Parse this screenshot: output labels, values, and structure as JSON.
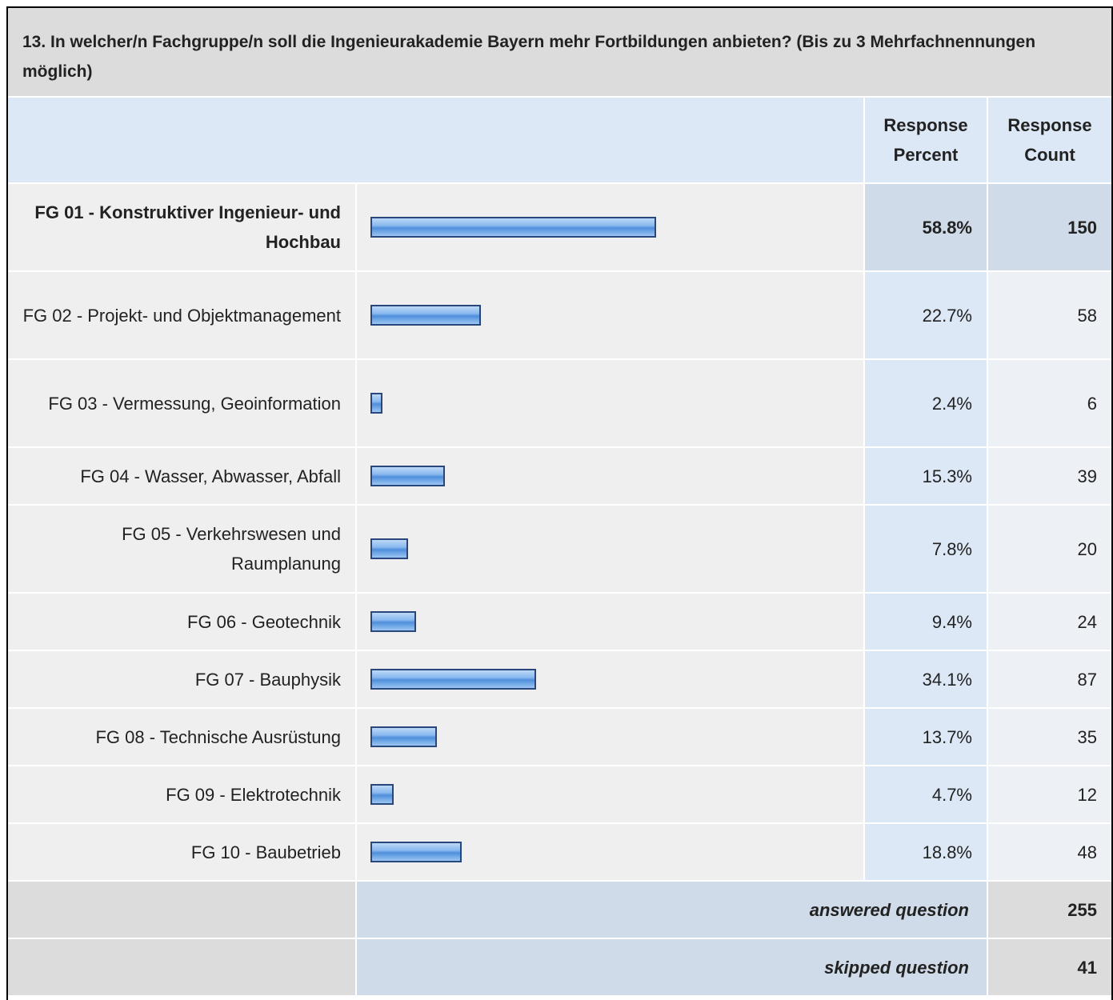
{
  "question": "13. In welcher/n Fachgruppe/n soll die Ingenieurakademie Bayern mehr Fortbildungen anbieten? (Bis zu 3 Mehrfachnennungen möglich)",
  "columns": [
    "Response Percent",
    "Response Count"
  ],
  "rows": [
    {
      "label": "FG 01 - Konstruktiver Ingenieur- und Hochbau",
      "percent": 58.8,
      "percent_label": "58.8%",
      "count": 150
    },
    {
      "label": "FG 02 - Projekt- und Objektmanagement",
      "percent": 22.7,
      "percent_label": "22.7%",
      "count": 58
    },
    {
      "label": "FG 03 - Vermessung, Geoinformation",
      "percent": 2.4,
      "percent_label": "2.4%",
      "count": 6
    },
    {
      "label": "FG 04 - Wasser, Abwasser, Abfall",
      "percent": 15.3,
      "percent_label": "15.3%",
      "count": 39
    },
    {
      "label": "FG 05 - Verkehrswesen und Raumplanung",
      "percent": 7.8,
      "percent_label": "7.8%",
      "count": 20
    },
    {
      "label": "FG 06 - Geotechnik",
      "percent": 9.4,
      "percent_label": "9.4%",
      "count": 24
    },
    {
      "label": "FG 07 - Bauphysik",
      "percent": 34.1,
      "percent_label": "34.1%",
      "count": 87
    },
    {
      "label": "FG 08 - Technische Ausrüstung",
      "percent": 13.7,
      "percent_label": "13.7%",
      "count": 35
    },
    {
      "label": "FG 09 - Elektrotechnik",
      "percent": 4.7,
      "percent_label": "4.7%",
      "count": 12
    },
    {
      "label": "FG 10 - Baubetrieb",
      "percent": 18.8,
      "percent_label": "18.8%",
      "count": 48
    }
  ],
  "footer": [
    {
      "label": "answered question",
      "count": 255
    },
    {
      "label": "skipped question",
      "count": 41
    }
  ]
}
